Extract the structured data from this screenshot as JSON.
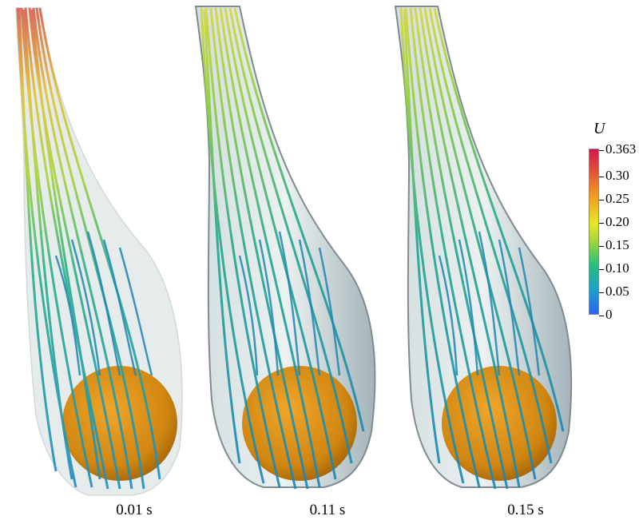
{
  "panels": [
    {
      "time_label": "0.01 s"
    },
    {
      "time_label": "0.11 s"
    },
    {
      "time_label": "0.15 s"
    }
  ],
  "colorbar": {
    "title": "U",
    "ticks": [
      "0.363",
      "0.30",
      "0.25",
      "0.20",
      "0.15",
      "0.10",
      "0.05",
      "0"
    ],
    "colors": [
      "#2a6ff0",
      "#1fa0c8",
      "#27c07a",
      "#9fd43a",
      "#e8e62a",
      "#f0a020",
      "#e0503a",
      "#d0184a"
    ]
  },
  "colors": {
    "sphere": "#d98c12",
    "shell": "#9fb2b8",
    "streamline_dark": "#1d7fb0"
  }
}
